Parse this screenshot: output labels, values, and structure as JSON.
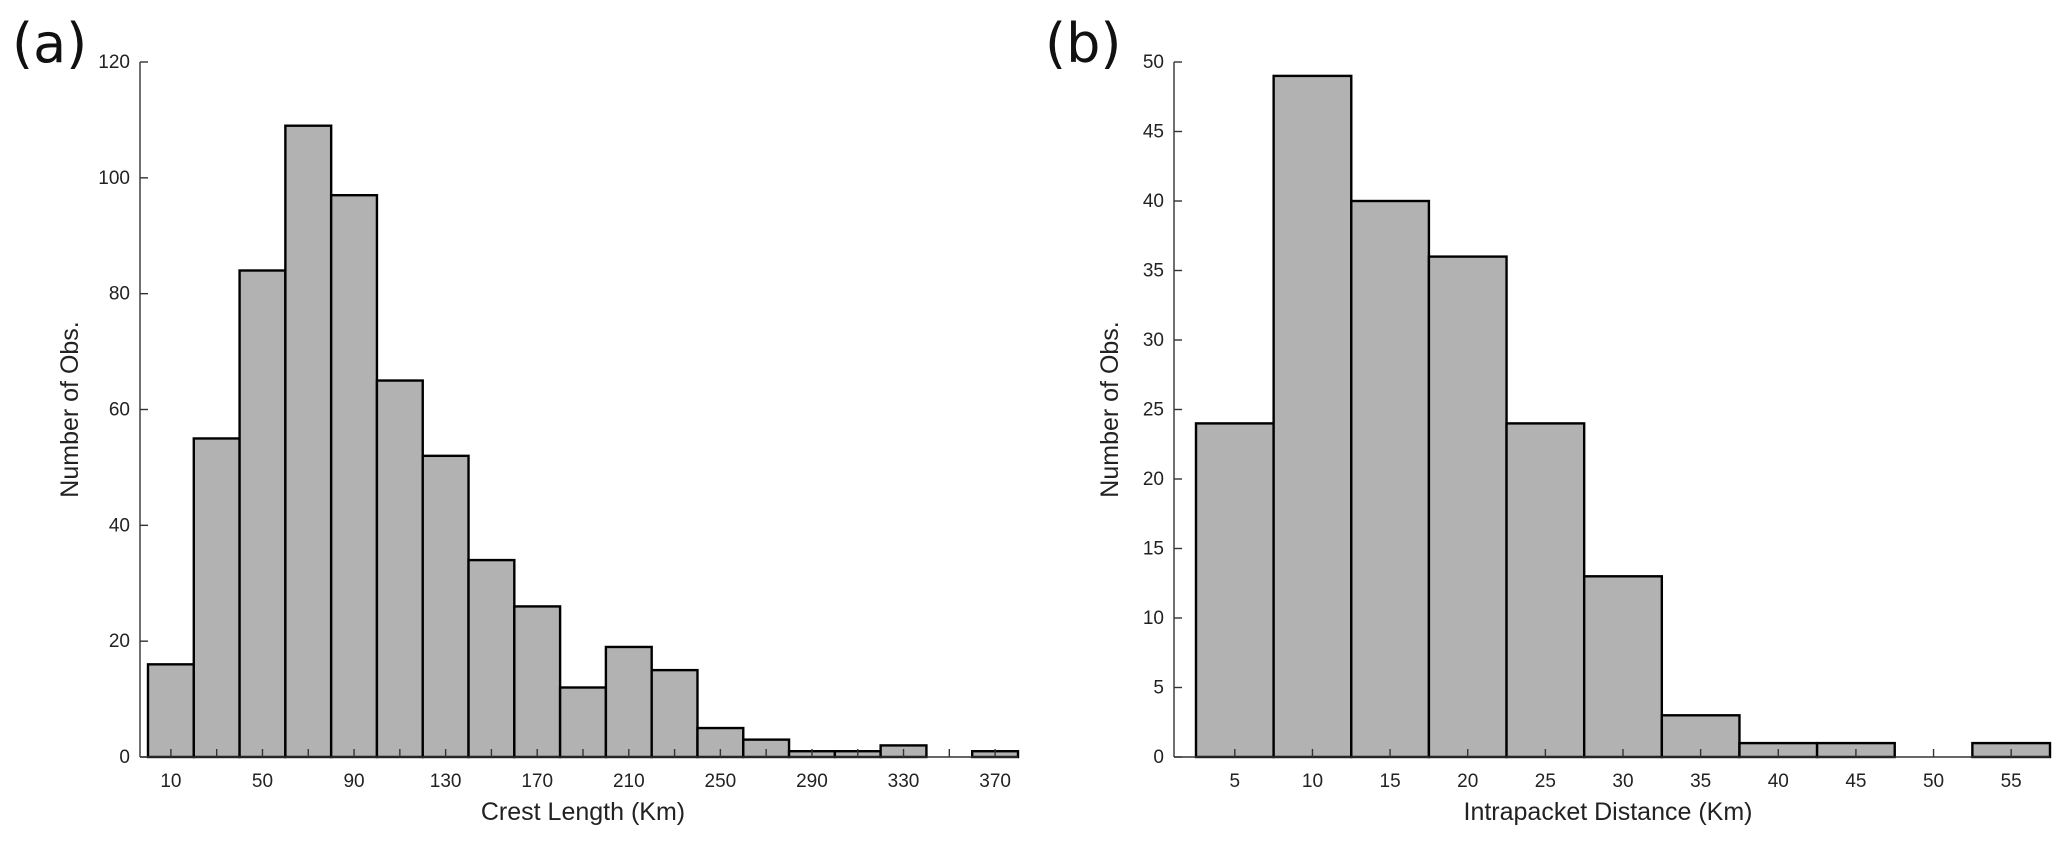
{
  "chart_data": [
    {
      "type": "bar",
      "panel_label": "(a)",
      "xlabel": "Crest Length (Km)",
      "ylabel": "Number of Obs.",
      "ylim": [
        0,
        120
      ],
      "yticks": [
        0,
        20,
        40,
        60,
        80,
        100,
        120
      ],
      "xticks": [
        10,
        50,
        90,
        130,
        170,
        210,
        250,
        290,
        330,
        370
      ],
      "bin_width": 20,
      "bin_centers": [
        10,
        30,
        50,
        70,
        90,
        110,
        130,
        150,
        170,
        190,
        210,
        230,
        250,
        270,
        290,
        310,
        330,
        350,
        370
      ],
      "values": [
        16,
        55,
        84,
        109,
        97,
        65,
        52,
        34,
        26,
        12,
        19,
        15,
        5,
        3,
        1,
        1,
        2,
        0,
        1
      ],
      "grid": false
    },
    {
      "type": "bar",
      "panel_label": "(b)",
      "xlabel": "Intrapacket Distance (Km)",
      "ylabel": "Number of Obs.",
      "ylim": [
        0,
        50
      ],
      "yticks": [
        0,
        5,
        10,
        15,
        20,
        25,
        30,
        35,
        40,
        45,
        50
      ],
      "xticks": [
        5,
        10,
        15,
        20,
        25,
        30,
        35,
        40,
        45,
        50,
        55
      ],
      "bin_width": 5,
      "bin_centers": [
        5,
        10,
        15,
        20,
        25,
        30,
        35,
        40,
        45,
        50,
        55
      ],
      "values": [
        24,
        49,
        40,
        36,
        24,
        13,
        3,
        1,
        1,
        0,
        1
      ],
      "grid": false
    }
  ]
}
